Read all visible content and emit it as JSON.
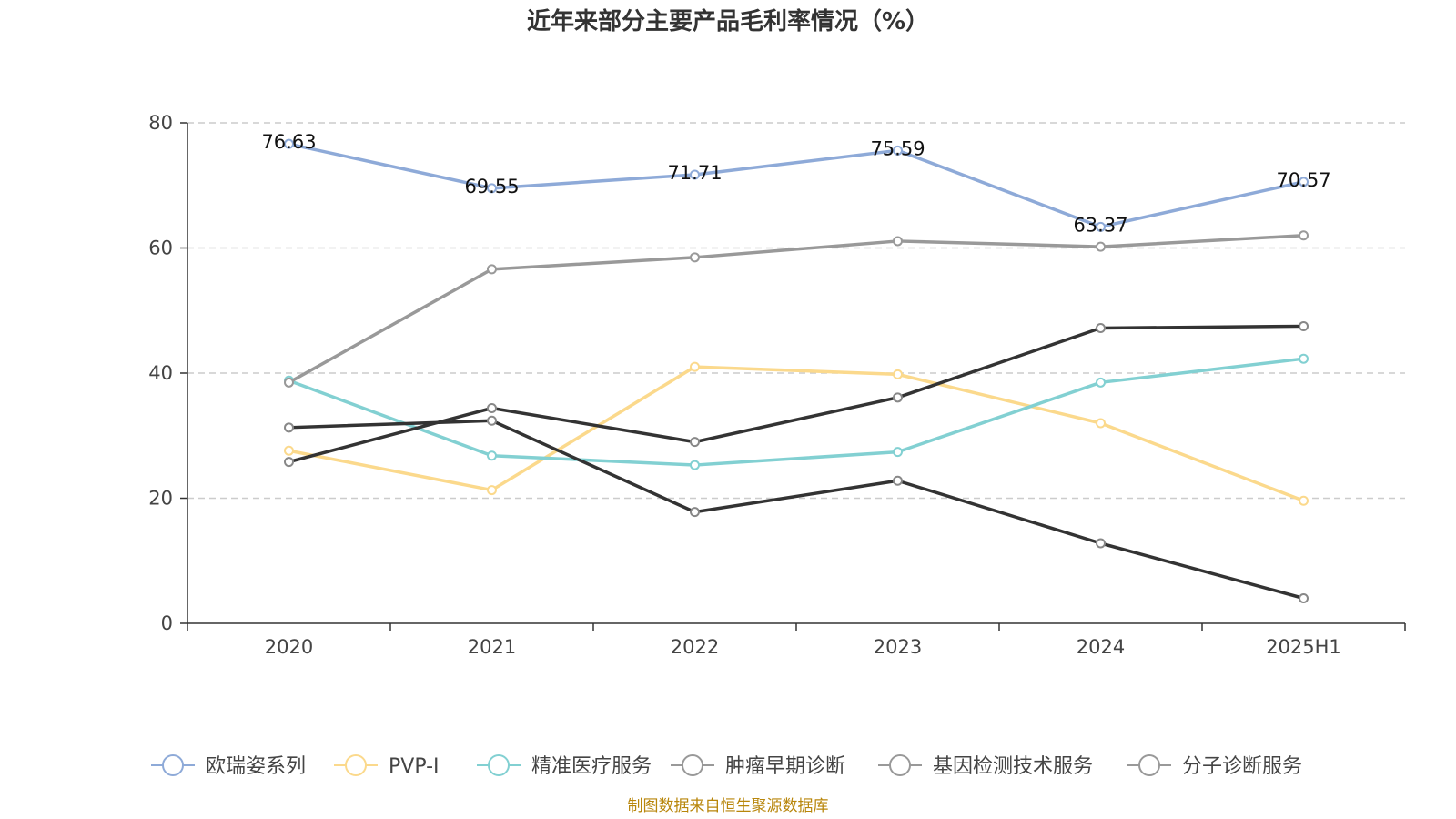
{
  "chart_data": {
    "type": "line",
    "title": "近年来部分主要产品毛利率情况（%）",
    "categories": [
      "2020",
      "2021",
      "2022",
      "2023",
      "2024",
      "2025H1"
    ],
    "ylim": [
      0,
      80
    ],
    "yticks": [
      0,
      20,
      40,
      60,
      80
    ],
    "grid": true,
    "legend_position": "bottom",
    "series": [
      {
        "name": "欧瑞姿系列",
        "values": [
          76.63,
          69.55,
          71.71,
          75.59,
          63.37,
          70.57
        ],
        "color": "#8eaad8",
        "show_labels": true
      },
      {
        "name": "PVP-I",
        "values": [
          27.6,
          21.3,
          41.0,
          39.8,
          32.0,
          19.6
        ],
        "color": "#fbd98c",
        "show_labels": false
      },
      {
        "name": "精准医疗服务",
        "values": [
          38.8,
          26.8,
          25.3,
          27.4,
          38.5,
          42.3
        ],
        "color": "#82d0d2",
        "show_labels": false
      },
      {
        "name": "肿瘤早期诊断",
        "values": [
          31.3,
          32.4,
          17.8,
          22.8,
          12.8,
          4.0
        ],
        "color": "#333333",
        "show_labels": false
      },
      {
        "name": "基因检测技术服务",
        "values": [
          38.5,
          56.6,
          58.5,
          61.1,
          60.2,
          62.0
        ],
        "color": "#999999",
        "show_labels": false
      },
      {
        "name": "分子诊断服务",
        "values": [
          25.8,
          34.4,
          29.0,
          36.1,
          47.2,
          47.5
        ],
        "color": "#333333",
        "show_labels": false
      }
    ],
    "legend_marker_colors": [
      "#8eaad8",
      "#fbd98c",
      "#82d0d2",
      "#999999",
      "#999999",
      "#999999"
    ],
    "source": "制图数据来自恒生聚源数据库"
  }
}
